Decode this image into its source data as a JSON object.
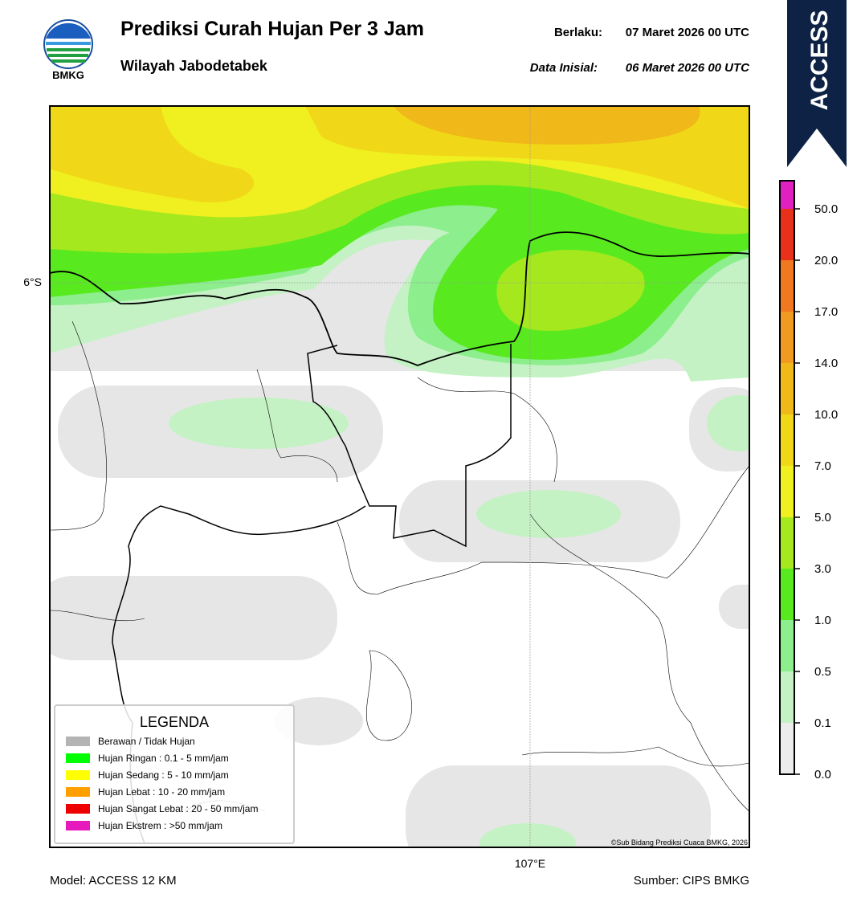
{
  "header": {
    "title": "Prediksi Curah Hujan Per 3 Jam",
    "subtitle": "Wilayah Jabodetabek",
    "valid_label": "Berlaku:",
    "valid_time": "07 Maret 2026 00 UTC",
    "init_label": "Data Inisial:",
    "init_time": "06 Maret 2026 00 UTC",
    "logo_text": "BMKG",
    "model_badge": "ACCESS"
  },
  "map": {
    "lat_label": "6°S",
    "lon_label": "107°E",
    "credit": "©Sub Bidang Prediksi Cuaca BMKG, 2026"
  },
  "legend": {
    "title": "LEGENDA",
    "items": [
      {
        "label": "Berawan / Tidak Hujan",
        "color": "#b4b4b4"
      },
      {
        "label": "Hujan Ringan : 0.1 - 5 mm/jam",
        "color": "#00ff00"
      },
      {
        "label": "Hujan Sedang : 5 - 10 mm/jam",
        "color": "#ffff00"
      },
      {
        "label": "Hujan Lebat : 10 - 20 mm/jam",
        "color": "#ffa000"
      },
      {
        "label": "Hujan Sangat Lebat : 20 - 50 mm/jam",
        "color": "#ee0000"
      },
      {
        "label": "Hujan Ekstrem : >50 mm/jam",
        "color": "#e619bd"
      }
    ]
  },
  "colorbar": {
    "ticks": [
      "0.0",
      "0.1",
      "0.5",
      "1.0",
      "3.0",
      "5.0",
      "7.0",
      "10.0",
      "14.0",
      "17.0",
      "20.0",
      "50.0"
    ],
    "colors": [
      "#ececec",
      "#c4f2c4",
      "#8cee8c",
      "#58ea1e",
      "#a6e81e",
      "#f0f020",
      "#f0d818",
      "#f0b818",
      "#f09a20",
      "#f07820",
      "#e8301a",
      "#e020c0"
    ]
  },
  "footer": {
    "model": "Model: ACCESS 12 KM",
    "source": "Sumber: CIPS BMKG"
  }
}
